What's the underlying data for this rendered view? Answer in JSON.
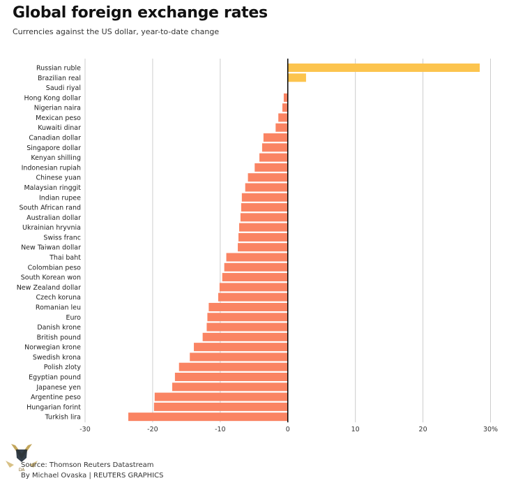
{
  "header": {
    "title": "Global foreign exchange rates",
    "subtitle": "Currencies against the US dollar, year-to-date change"
  },
  "footer": {
    "source": "Source: Thomson Reuters Datastream",
    "credit": "By Michael Ovaska | REUTERS GRAPHICS"
  },
  "colors": {
    "positive": "#fcc44e",
    "negative": "#fa8463",
    "gridline": "#cccccc",
    "zero_line": "#000000"
  },
  "chart_data": {
    "type": "bar",
    "orientation": "horizontal",
    "title": "Global foreign exchange rates",
    "subtitle": "Currencies against the US dollar, year-to-date change",
    "xlabel": "",
    "ylabel": "",
    "xlim": [
      -30,
      30
    ],
    "xticks": [
      -30,
      -20,
      -10,
      0,
      10,
      20,
      30
    ],
    "xtick_labels": [
      "-30",
      "-20",
      "-10",
      "0",
      "10",
      "20",
      "30%"
    ],
    "grid": true,
    "categories": [
      "Russian ruble",
      "Brazilian real",
      "Saudi riyal",
      "Hong Kong dollar",
      "Nigerian naira",
      "Mexican peso",
      "Kuwaiti dinar",
      "Canadian dollar",
      "Singapore dollar",
      "Kenyan shilling",
      "Indonesian rupiah",
      "Chinese yuan",
      "Malaysian ringgit",
      "Indian rupee",
      "South African rand",
      "Australian dollar",
      "Ukrainian hryvnia",
      "Swiss franc",
      "New Taiwan dollar",
      "Thai baht",
      "Colombian peso",
      "South Korean won",
      "New Zealand dollar",
      "Czech koruna",
      "Romanian leu",
      "Euro",
      "Danish krone",
      "British pound",
      "Norwegian krone",
      "Swedish krona",
      "Polish zloty",
      "Egyptian pound",
      "Japanese yen",
      "Argentine peso",
      "Hungarian forint",
      "Turkish lira"
    ],
    "values": [
      28.4,
      2.7,
      0.0,
      -0.6,
      -0.8,
      -1.4,
      -1.8,
      -3.6,
      -3.8,
      -4.2,
      -4.9,
      -5.9,
      -6.3,
      -6.8,
      -6.9,
      -7.0,
      -7.2,
      -7.3,
      -7.4,
      -9.1,
      -9.4,
      -9.7,
      -10.1,
      -10.3,
      -11.7,
      -11.9,
      -12.0,
      -12.6,
      -13.9,
      -14.5,
      -16.1,
      -16.7,
      -17.1,
      -19.7,
      -19.8,
      -23.6
    ]
  }
}
